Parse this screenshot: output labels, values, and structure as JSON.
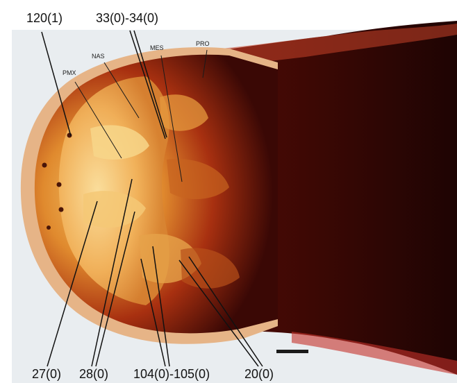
{
  "figure": {
    "labels_top": [
      "120(1)",
      "33(0)-34(0)"
    ],
    "labels_bottom": [
      "27(0)",
      "28(0)",
      "104(0)-105(0)",
      "20(0)"
    ],
    "bone_labels": [
      "PMX",
      "NAS",
      "MES",
      "PRO"
    ],
    "colors": {
      "background": "#ffffff",
      "photo_bg": "#e9edf0",
      "tissue_dark": "#2a0604",
      "tissue_mid": "#a8320e",
      "tissue_light": "#f0b35a",
      "rim": "#e6b487",
      "scale_bar": "#1a1a1a"
    }
  }
}
